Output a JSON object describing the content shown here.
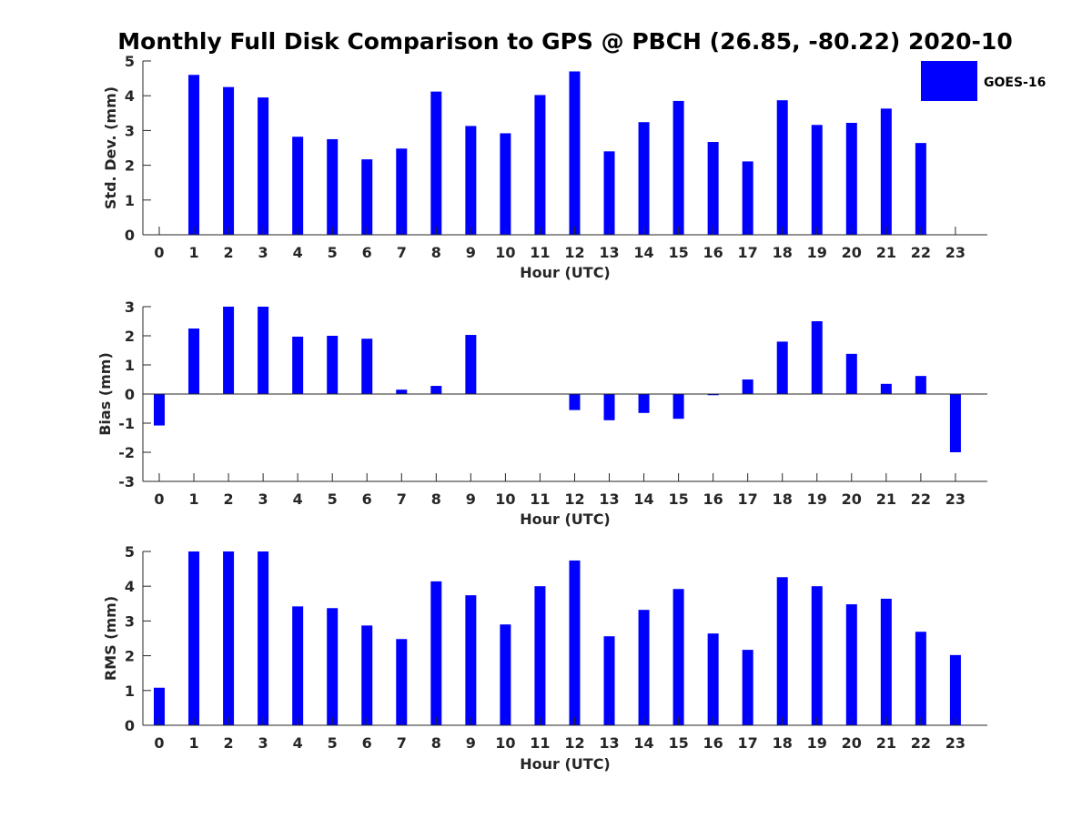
{
  "title": "Monthly Full Disk Comparison to GPS @ PBCH (26.85, -80.22) 2020-10",
  "legend": {
    "label": "GOES-16",
    "color": "#0000ff"
  },
  "colors": {
    "bar": "#0000ff",
    "axis": "#262626"
  },
  "chart_data": [
    {
      "type": "bar",
      "title": "Monthly Full Disk Comparison to GPS @ PBCH (26.85, -80.22) 2020-10",
      "xlabel": "Hour (UTC)",
      "ylabel": "Std. Dev. (mm)",
      "categories": [
        "0",
        "1",
        "2",
        "3",
        "4",
        "5",
        "6",
        "7",
        "8",
        "9",
        "10",
        "11",
        "12",
        "13",
        "14",
        "15",
        "16",
        "17",
        "18",
        "19",
        "20",
        "21",
        "22",
        "23"
      ],
      "series": [
        {
          "name": "GOES-16",
          "values": [
            null,
            4.6,
            4.25,
            3.95,
            2.82,
            2.75,
            2.17,
            2.48,
            4.12,
            3.13,
            2.92,
            4.02,
            4.7,
            2.4,
            3.24,
            3.85,
            2.67,
            2.11,
            3.87,
            3.16,
            3.22,
            3.63,
            2.64,
            null
          ]
        }
      ],
      "ylim": [
        0,
        5
      ],
      "yticks": [
        0,
        1,
        2,
        3,
        4,
        5
      ],
      "legend": "top-right"
    },
    {
      "type": "bar",
      "xlabel": "Hour (UTC)",
      "ylabel": "Bias (mm)",
      "categories": [
        "0",
        "1",
        "2",
        "3",
        "4",
        "5",
        "6",
        "7",
        "8",
        "9",
        "10",
        "11",
        "12",
        "13",
        "14",
        "15",
        "16",
        "17",
        "18",
        "19",
        "20",
        "21",
        "22",
        "23"
      ],
      "series": [
        {
          "name": "GOES-16",
          "values": [
            -1.08,
            2.25,
            3.0,
            3.0,
            1.97,
            2.0,
            1.9,
            0.15,
            0.28,
            2.03,
            0,
            0,
            -0.55,
            -0.9,
            -0.65,
            -0.85,
            -0.04,
            0.5,
            1.8,
            2.5,
            1.38,
            0.35,
            0.62,
            -2.0
          ]
        }
      ],
      "ylim": [
        -3,
        3
      ],
      "yticks": [
        -3,
        -2,
        -1,
        0,
        1,
        2,
        3
      ]
    },
    {
      "type": "bar",
      "xlabel": "Hour (UTC)",
      "ylabel": "RMS (mm)",
      "categories": [
        "0",
        "1",
        "2",
        "3",
        "4",
        "5",
        "6",
        "7",
        "8",
        "9",
        "10",
        "11",
        "12",
        "13",
        "14",
        "15",
        "16",
        "17",
        "18",
        "19",
        "20",
        "21",
        "22",
        "23"
      ],
      "series": [
        {
          "name": "GOES-16",
          "values": [
            1.08,
            5.0,
            5.0,
            5.0,
            3.42,
            3.37,
            2.87,
            2.48,
            4.14,
            3.74,
            2.9,
            4.0,
            4.74,
            2.56,
            3.32,
            3.92,
            2.64,
            2.17,
            4.26,
            4.0,
            3.48,
            3.64,
            2.69,
            2.02
          ]
        }
      ],
      "ylim": [
        0,
        5
      ],
      "yticks": [
        0,
        1,
        2,
        3,
        4,
        5
      ]
    }
  ]
}
